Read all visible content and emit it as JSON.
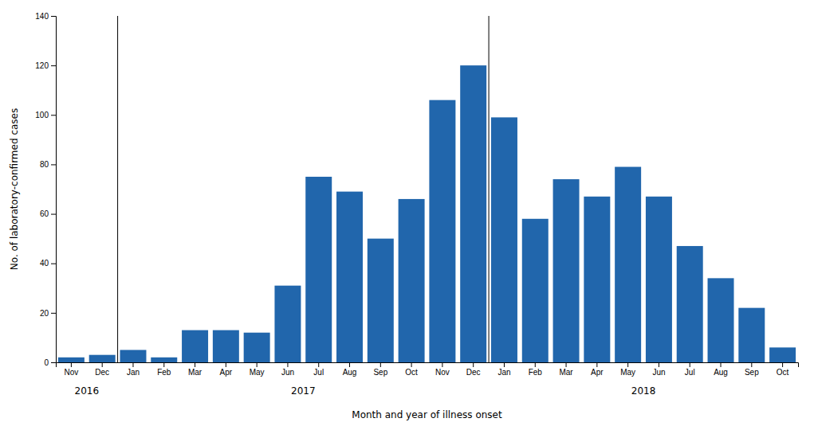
{
  "chart_data": {
    "type": "bar",
    "categories": [
      "Nov",
      "Dec",
      "Jan",
      "Feb",
      "Mar",
      "Apr",
      "May",
      "Jun",
      "Jul",
      "Aug",
      "Sep",
      "Oct",
      "Nov",
      "Dec",
      "Jan",
      "Feb",
      "Mar",
      "Apr",
      "May",
      "Jun",
      "Jul",
      "Aug",
      "Sep",
      "Oct"
    ],
    "values": [
      2,
      3,
      5,
      2,
      13,
      13,
      12,
      31,
      75,
      69,
      50,
      66,
      106,
      120,
      99,
      58,
      74,
      67,
      79,
      67,
      47,
      34,
      22,
      6
    ],
    "color": "#2166ac",
    "x_label": "Month and year of illness onset",
    "y_label": "No. of laboratory-confirmed cases",
    "ylim": [
      0,
      140
    ],
    "yticks": [
      0,
      20,
      40,
      60,
      80,
      100,
      120,
      140
    ],
    "annotations": [
      {
        "text": "2016",
        "x": 0.5
      },
      {
        "text": "2017",
        "x": 7.5
      },
      {
        "text": "2018",
        "x": 18.5
      }
    ],
    "vlines": [
      1.5,
      13.5
    ],
    "grid": false
  }
}
